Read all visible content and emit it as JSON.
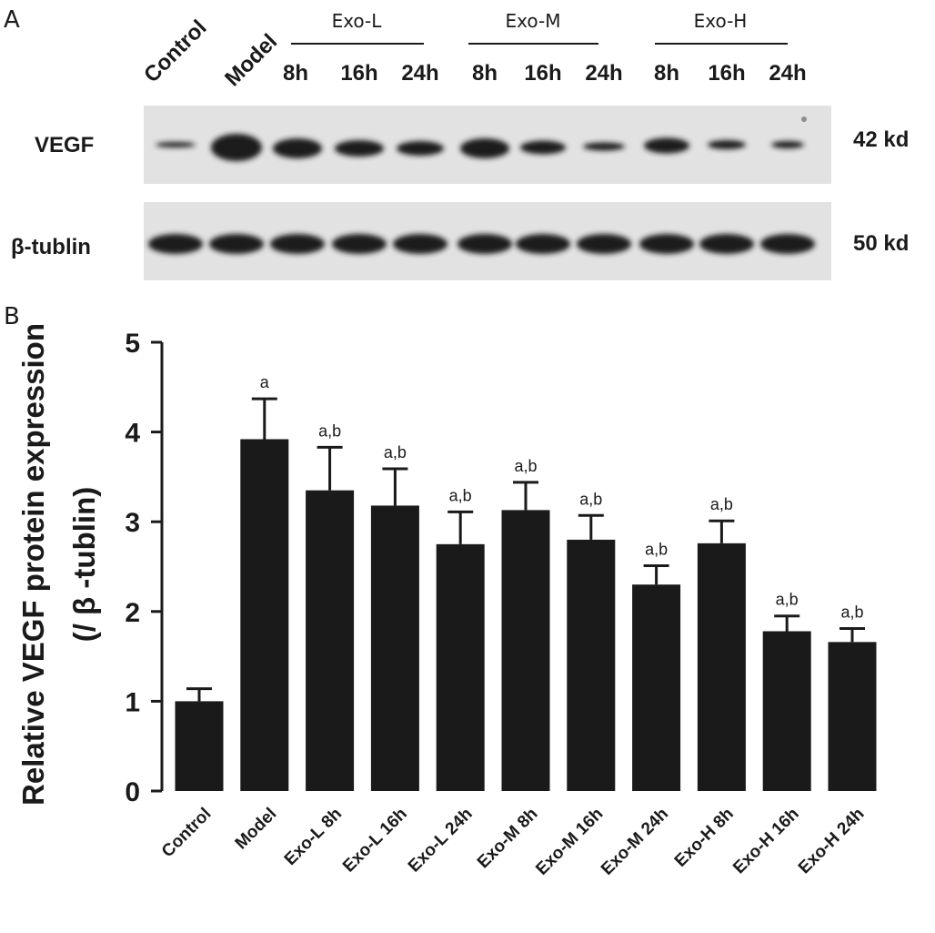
{
  "panel_a": {
    "letter": "A",
    "lane_labels": [
      "Control",
      "Model"
    ],
    "groups": [
      {
        "label": "Exo-L",
        "times": [
          "8h",
          "16h",
          "24h"
        ]
      },
      {
        "label": "Exo-M",
        "times": [
          "8h",
          "16h",
          "24h"
        ]
      },
      {
        "label": "Exo-H",
        "times": [
          "8h",
          "16h",
          "24h"
        ]
      }
    ],
    "rows": [
      {
        "label": "VEGF",
        "size": "42 kd"
      },
      {
        "label": "β-tublin",
        "size": "50 kd"
      }
    ]
  },
  "panel_b": {
    "letter": "B"
  },
  "chart_data": {
    "type": "bar",
    "title": "",
    "xlabel": "",
    "ylabel_line1": "Relative VEGF protein expression",
    "ylabel_line2": "(/ β -tublin)",
    "ylim": [
      0,
      5
    ],
    "yticks": [
      0,
      1,
      2,
      3,
      4,
      5
    ],
    "categories": [
      "Control",
      "Model",
      "Exo-L 8h",
      "Exo-L 16h",
      "Exo-L 24h",
      "Exo-M 8h",
      "Exo-M 16h",
      "Exo-M 24h",
      "Exo-H 8h",
      "Exo-H 16h",
      "Exo-H 24h"
    ],
    "values": [
      1.0,
      3.92,
      3.35,
      3.18,
      2.75,
      3.13,
      2.8,
      2.3,
      2.76,
      1.78,
      1.66
    ],
    "errors": [
      0.14,
      0.45,
      0.48,
      0.41,
      0.36,
      0.31,
      0.27,
      0.21,
      0.25,
      0.17,
      0.15
    ],
    "annotations": [
      "",
      "a",
      "a,b",
      "a,b",
      "a,b",
      "a,b",
      "a,b",
      "a,b",
      "a,b",
      "a,b",
      "a,b"
    ],
    "bar_color": "#1a1a1a",
    "grid": false,
    "legend": "none"
  }
}
